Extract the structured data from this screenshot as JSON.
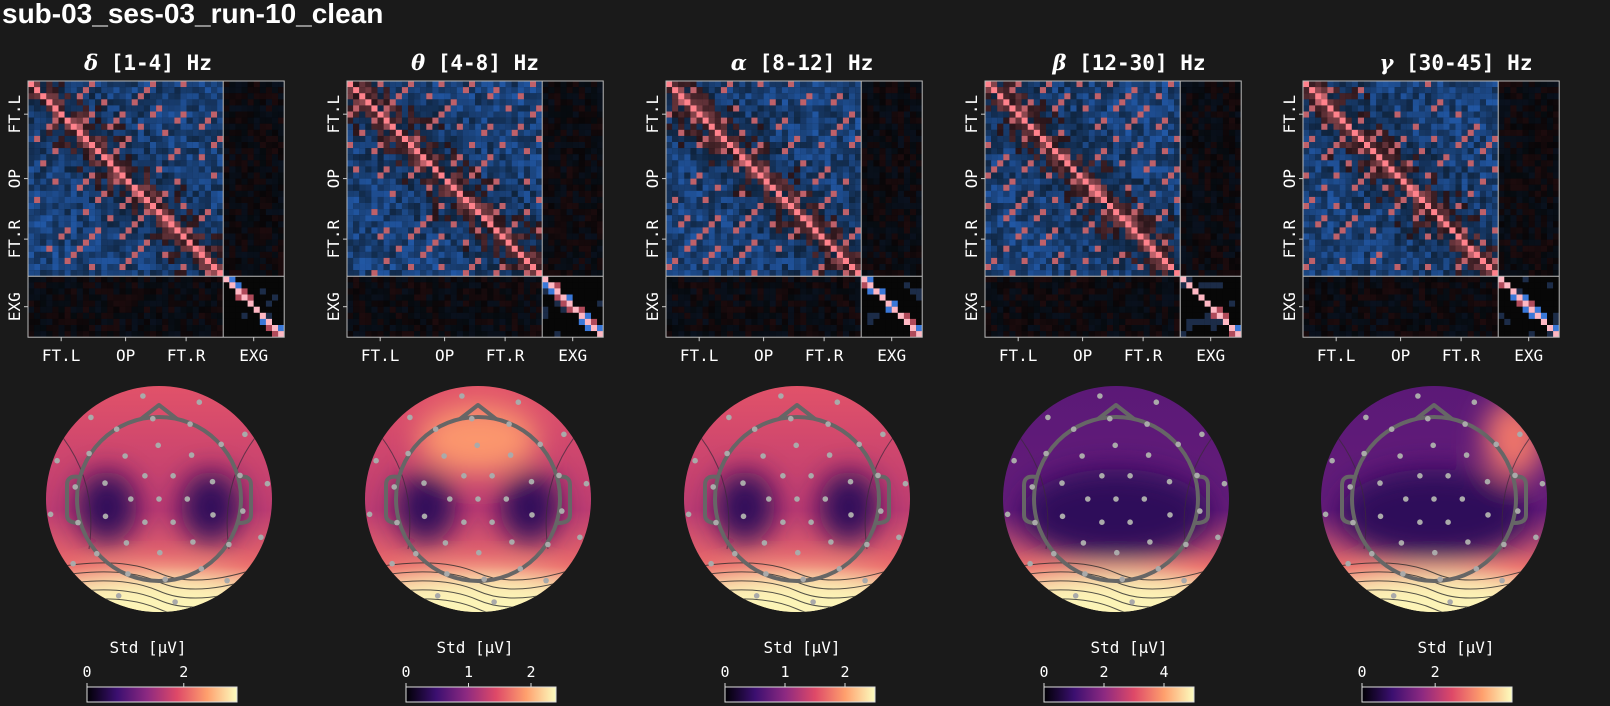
{
  "figure": {
    "title": "sub-03_ses-03_run-10_clean",
    "row_tick_labels": [
      "FT.L",
      "OP",
      "FT.R",
      "EXG"
    ],
    "col_tick_labels": [
      "FT.L",
      "OP",
      "FT.R",
      "EXG"
    ],
    "colorbar_label": "Std [μV]"
  },
  "chart_data": [
    {
      "type": "heatmap",
      "band": "delta",
      "symbol": "δ",
      "range": " [1-4] Hz",
      "title": "δ [1-4] Hz",
      "matrix_label": "channel correlation",
      "row_labels": [
        "FT.L",
        "OP",
        "FT.R",
        "EXG"
      ],
      "col_labels": [
        "FT.L",
        "OP",
        "FT.R",
        "EXG"
      ],
      "topomap": {
        "hot_regions": [
          "occipital"
        ],
        "cold_regions": [
          "left-temporal",
          "right-temporal"
        ]
      },
      "colorbar": {
        "label": "Std [μV]",
        "ticks": [
          "0",
          "2"
        ],
        "tick_values": [
          0,
          2
        ],
        "vmin": 0,
        "vmax": 3.1,
        "cmap": "magma"
      }
    },
    {
      "type": "heatmap",
      "band": "theta",
      "symbol": "θ",
      "range": " [4-8] Hz",
      "title": "θ [4-8] Hz",
      "row_labels": [
        "FT.L",
        "OP",
        "FT.R",
        "EXG"
      ],
      "col_labels": [
        "FT.L",
        "OP",
        "FT.R",
        "EXG"
      ],
      "topomap": {
        "hot_regions": [
          "occipital",
          "frontal"
        ],
        "cold_regions": [
          "left-temporal",
          "right-temporal"
        ]
      },
      "colorbar": {
        "label": "Std [μV]",
        "ticks": [
          "0",
          "1",
          "2"
        ],
        "tick_values": [
          0,
          1,
          2
        ],
        "vmin": 0,
        "vmax": 2.4,
        "cmap": "magma"
      }
    },
    {
      "type": "heatmap",
      "band": "alpha",
      "symbol": "α",
      "range": " [8-12] Hz",
      "title": "α [8-12] Hz",
      "row_labels": [
        "FT.L",
        "OP",
        "FT.R",
        "EXG"
      ],
      "col_labels": [
        "FT.L",
        "OP",
        "FT.R",
        "EXG"
      ],
      "topomap": {
        "hot_regions": [
          "occipital"
        ],
        "cold_regions": [
          "left-temporal",
          "right-temporal"
        ]
      },
      "colorbar": {
        "label": "Std [μV]",
        "ticks": [
          "0",
          "1",
          "2"
        ],
        "tick_values": [
          0,
          1,
          2
        ],
        "vmin": 0,
        "vmax": 2.5,
        "cmap": "magma"
      }
    },
    {
      "type": "heatmap",
      "band": "beta",
      "symbol": "β",
      "range": " [12-30] Hz",
      "title": "β [12-30] Hz",
      "row_labels": [
        "FT.L",
        "OP",
        "FT.R",
        "EXG"
      ],
      "col_labels": [
        "FT.L",
        "OP",
        "FT.R",
        "EXG"
      ],
      "topomap": {
        "hot_regions": [
          "occipital"
        ],
        "cold_regions": [
          "central"
        ]
      },
      "colorbar": {
        "label": "Std [μV]",
        "ticks": [
          "0",
          "2",
          "4"
        ],
        "tick_values": [
          0,
          2,
          4
        ],
        "vmin": 0,
        "vmax": 5,
        "cmap": "magma"
      }
    },
    {
      "type": "heatmap",
      "band": "gamma",
      "symbol": "γ",
      "range": " [30-45] Hz",
      "title": "γ [30-45] Hz",
      "row_labels": [
        "FT.L",
        "OP",
        "FT.R",
        "EXG"
      ],
      "col_labels": [
        "FT.L",
        "OP",
        "FT.R",
        "EXG"
      ],
      "topomap": {
        "hot_regions": [
          "occipital",
          "right-frontal"
        ],
        "cold_regions": [
          "central"
        ]
      },
      "colorbar": {
        "label": "Std [μV]",
        "ticks": [
          "0",
          "2"
        ],
        "tick_values": [
          0,
          2
        ],
        "vmin": 0,
        "vmax": 4.1,
        "cmap": "magma"
      }
    }
  ]
}
